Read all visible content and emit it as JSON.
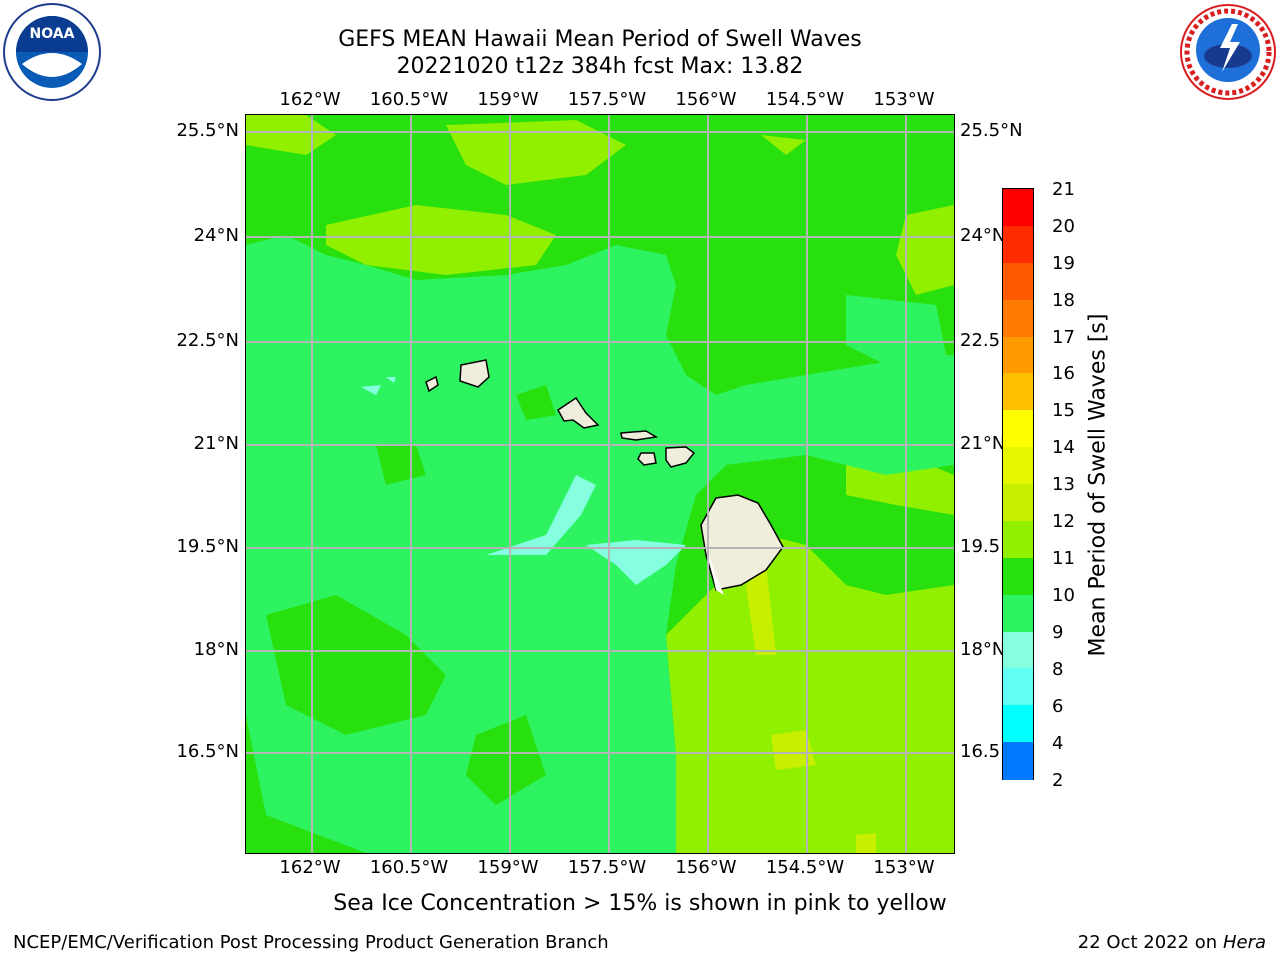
{
  "title_line1": "GEFS MEAN Hawaii Mean Period of Swell Waves",
  "title_line2": "20221020 t12z 384h fcst   Max: 13.82",
  "logos": {
    "left": "noaa-logo",
    "right": "nws-logo"
  },
  "map": {
    "lon_ticks": [
      "162°W",
      "160.5°W",
      "159°W",
      "157.5°W",
      "156°W",
      "154.5°W",
      "153°W"
    ],
    "lat_ticks": [
      "25.5°N",
      "24°N",
      "22.5°N",
      "21°N",
      "19.5°N",
      "18°N",
      "16.5°N"
    ],
    "lat_ticks_right": [
      "25.5°N",
      "24°N",
      "22.5",
      "21°N",
      "19.5",
      "18°N",
      "16.5"
    ],
    "land_color": "#efeedc",
    "background_field_color": "#27e00e"
  },
  "colorbar": {
    "title": "Mean Period of Swell Waves [s]",
    "levels": [
      "21",
      "20",
      "19",
      "18",
      "17",
      "16",
      "15",
      "14",
      "13",
      "12",
      "11",
      "10",
      "9",
      "8",
      "6",
      "4",
      "2"
    ],
    "colors": [
      "#ff0000",
      "#ff2a00",
      "#ff5a00",
      "#ff7a00",
      "#ff9a00",
      "#ffbf00",
      "#fffe00",
      "#e4f700",
      "#c7f000",
      "#90f000",
      "#27e00e",
      "#2ef360",
      "#86ffe0",
      "#62fff5",
      "#00ffff",
      "#0079ff",
      "#0000ff"
    ]
  },
  "caption": "Sea Ice Concentration > 15% is shown in pink to yellow",
  "footer": {
    "left": "NCEP/EMC/Verification Post Processing Product Generation Branch",
    "date": "22 Oct 2022 on ",
    "host": "Hera"
  }
}
